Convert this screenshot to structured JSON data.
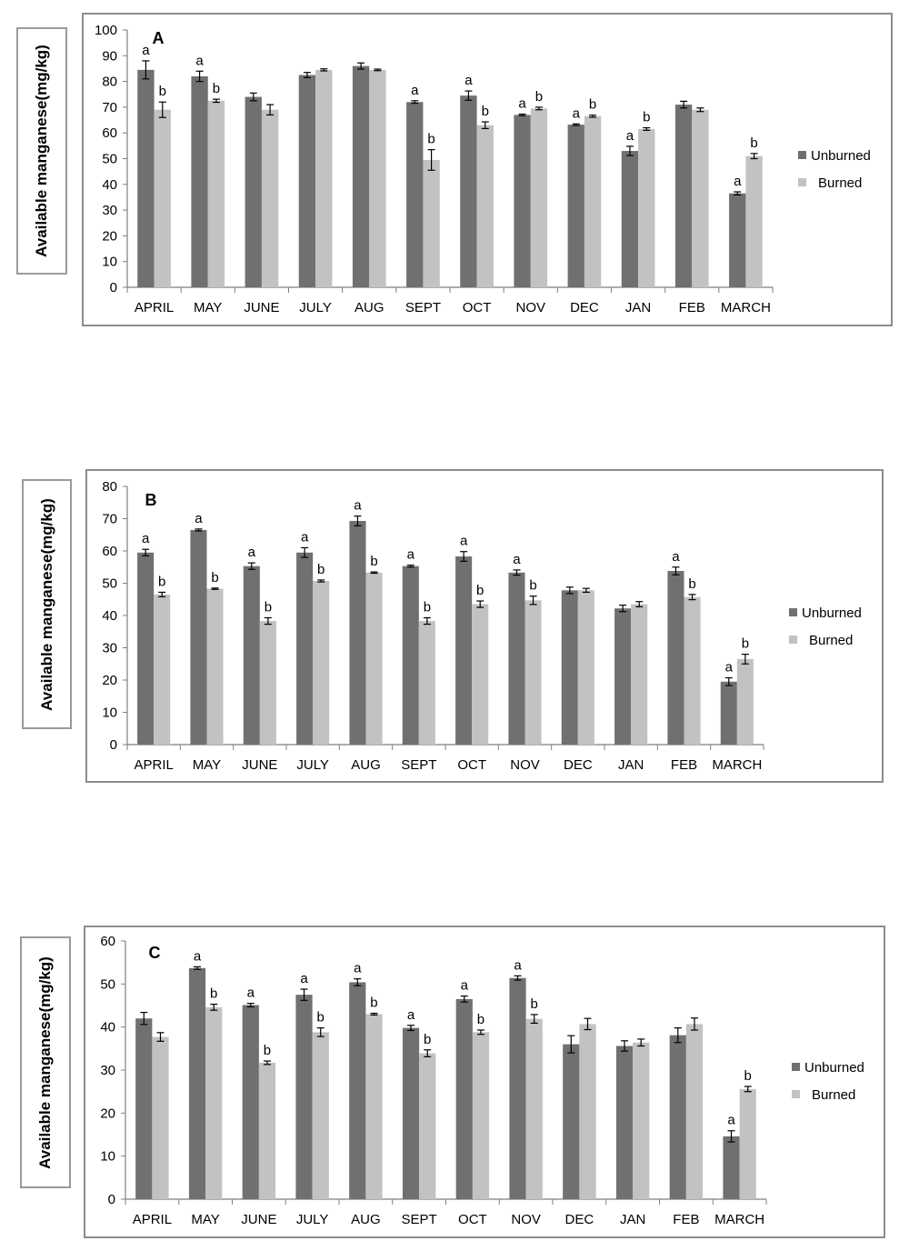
{
  "colors": {
    "unburned": "#707070",
    "burned": "#c2c2c2",
    "frame": "#8c8c8c",
    "axis": "#7f7f7f"
  },
  "chart_data": [
    {
      "type": "bar",
      "panel_label": "A",
      "ylabel": "Available manganese(mg/kg)",
      "ylim": [
        0,
        100
      ],
      "yticks": [
        0,
        10,
        20,
        30,
        40,
        50,
        60,
        70,
        80,
        90,
        100
      ],
      "categories": [
        "APRIL",
        "MAY",
        "JUNE",
        "JULY",
        "AUG",
        "SEPT",
        "OCT",
        "NOV",
        "DEC",
        "JAN",
        "FEB",
        "MARCH"
      ],
      "legend": "right",
      "series": [
        {
          "name": "Unburned",
          "values": [
            84.5,
            82,
            74,
            82.5,
            86,
            72,
            74.5,
            67,
            63.2,
            53,
            71,
            36.5
          ],
          "errors": [
            3.5,
            2,
            1.5,
            1,
            1.2,
            0.5,
            1.8,
            0.3,
            0.3,
            1.8,
            1.3,
            0.6
          ],
          "sig": [
            "a",
            "a",
            "",
            "",
            "",
            "a",
            "a",
            "a",
            "a",
            "a",
            "",
            "a"
          ]
        },
        {
          "name": "Burned",
          "values": [
            69,
            72.5,
            69,
            84.5,
            84.5,
            49.5,
            63,
            69.5,
            66.5,
            61.5,
            69,
            51
          ],
          "errors": [
            3,
            0.6,
            2,
            0.4,
            0.3,
            4,
            1.3,
            0.5,
            0.4,
            0.5,
            0.7,
            1
          ],
          "sig": [
            "b",
            "b",
            "",
            "",
            "",
            "b",
            "b",
            "b",
            "b",
            "b",
            "",
            "b"
          ]
        }
      ]
    },
    {
      "type": "bar",
      "panel_label": "B",
      "ylabel": "Available manganese(mg/kg)",
      "ylim": [
        0,
        80
      ],
      "yticks": [
        0,
        10,
        20,
        30,
        40,
        50,
        60,
        70,
        80
      ],
      "categories": [
        "APRIL",
        "MAY",
        "JUNE",
        "JULY",
        "AUG",
        "SEPT",
        "OCT",
        "NOV",
        "DEC",
        "JAN",
        "FEB",
        "MARCH"
      ],
      "legend": "right",
      "series": [
        {
          "name": "Unburned",
          "values": [
            59.5,
            66.5,
            55.3,
            59.5,
            69.3,
            55.3,
            58.3,
            53.3,
            47.8,
            42.2,
            53.8,
            19.5
          ],
          "errors": [
            1,
            0.3,
            1,
            1.5,
            1.5,
            0.3,
            1.5,
            0.8,
            1,
            1,
            1.2,
            1.2
          ],
          "sig": [
            "a",
            "a",
            "a",
            "a",
            "a",
            "a",
            "a",
            "a",
            "",
            "",
            "a",
            "a"
          ]
        },
        {
          "name": "Burned",
          "values": [
            46.5,
            48.3,
            38.3,
            50.7,
            53.3,
            38.3,
            43.5,
            44.7,
            47.8,
            43.5,
            45.7,
            26.5
          ],
          "errors": [
            0.7,
            0.2,
            1,
            0.3,
            0.2,
            1,
            1,
            1.3,
            0.6,
            0.8,
            0.8,
            1.5
          ],
          "sig": [
            "b",
            "b",
            "b",
            "b",
            "b",
            "b",
            "b",
            "b",
            "",
            "",
            "b",
            "b"
          ]
        }
      ]
    },
    {
      "type": "bar",
      "panel_label": "C",
      "ylabel": "Available manganese(mg/kg)",
      "ylim": [
        0,
        60
      ],
      "yticks": [
        0,
        10,
        20,
        30,
        40,
        50,
        60
      ],
      "categories": [
        "APRIL",
        "MAY",
        "JUNE",
        "JULY",
        "AUG",
        "SEPT",
        "OCT",
        "NOV",
        "DEC",
        "JAN",
        "FEB",
        "MARCH"
      ],
      "legend": "right",
      "series": [
        {
          "name": "Unburned",
          "values": [
            42,
            53.7,
            45.1,
            47.5,
            50.4,
            39.8,
            46.5,
            51.4,
            36,
            35.6,
            38.1,
            14.6
          ],
          "errors": [
            1.4,
            0.3,
            0.4,
            1.3,
            0.8,
            0.6,
            0.7,
            0.5,
            2,
            1.2,
            1.7,
            1.3
          ],
          "sig": [
            "",
            "a",
            "a",
            "a",
            "a",
            "a",
            "a",
            "a",
            "",
            "",
            "",
            "a"
          ]
        },
        {
          "name": "Burned",
          "values": [
            37.7,
            44.6,
            31.7,
            38.8,
            43,
            33.9,
            38.8,
            41.9,
            40.7,
            36.4,
            40.7,
            25.6
          ],
          "errors": [
            1,
            0.7,
            0.4,
            1,
            0.2,
            0.8,
            0.5,
            1,
            1.3,
            0.8,
            1.4,
            0.6
          ],
          "sig": [
            "",
            "b",
            "b",
            "b",
            "b",
            "b",
            "b",
            "b",
            "",
            "",
            "",
            "b"
          ]
        }
      ]
    }
  ]
}
